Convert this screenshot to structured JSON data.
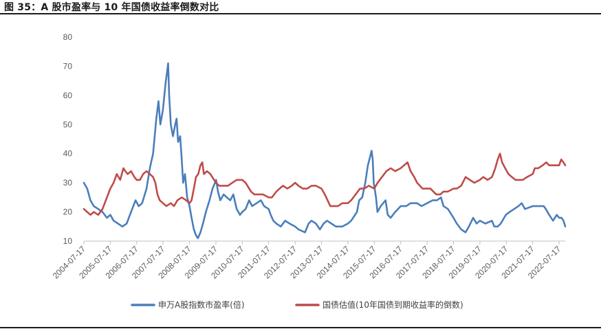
{
  "figure": {
    "title": "图 35：A 股市盈率与 10 年国债收益率倒数对比"
  },
  "colors": {
    "pe": "#4a7ebb",
    "bond": "#be4b48"
  },
  "chart_data": {
    "type": "line",
    "ylim": [
      10,
      80
    ],
    "yticks": [
      10,
      20,
      30,
      40,
      50,
      60,
      70,
      80
    ],
    "xlim": [
      "2004-07-17",
      "2022-10-10"
    ],
    "xticks": [
      "2004-07-17",
      "2005-07-17",
      "2006-07-17",
      "2007-07-17",
      "2008-07-17",
      "2009-07-17",
      "2010-07-17",
      "2011-07-17",
      "2012-07-17",
      "2013-07-17",
      "2014-07-17",
      "2015-07-17",
      "2016-07-17",
      "2017-07-17",
      "2018-07-17",
      "2019-07-17",
      "2020-07-17",
      "2021-07-17",
      "2022-07-17"
    ],
    "grid": false,
    "legend": "bottom",
    "series": [
      {
        "name": "申万A股指数市盈率(倍)",
        "color": "#4a7ebb",
        "points": [
          [
            "2004-07-17",
            30
          ],
          [
            "2004-09-01",
            28
          ],
          [
            "2004-10-15",
            24
          ],
          [
            "2004-12-01",
            22
          ],
          [
            "2005-02-01",
            21
          ],
          [
            "2005-04-01",
            20
          ],
          [
            "2005-06-01",
            18
          ],
          [
            "2005-07-17",
            19
          ],
          [
            "2005-09-01",
            17
          ],
          [
            "2005-11-01",
            16
          ],
          [
            "2006-01-01",
            15
          ],
          [
            "2006-03-01",
            16
          ],
          [
            "2006-05-01",
            20
          ],
          [
            "2006-07-01",
            24
          ],
          [
            "2006-08-15",
            22
          ],
          [
            "2006-10-01",
            23
          ],
          [
            "2006-12-01",
            28
          ],
          [
            "2007-01-15",
            35
          ],
          [
            "2007-03-01",
            40
          ],
          [
            "2007-04-15",
            52
          ],
          [
            "2007-05-15",
            58
          ],
          [
            "2007-06-10",
            50
          ],
          [
            "2007-07-15",
            55
          ],
          [
            "2007-08-20",
            64
          ],
          [
            "2007-09-10",
            68
          ],
          [
            "2007-09-25",
            71
          ],
          [
            "2007-10-10",
            60
          ],
          [
            "2007-11-01",
            50
          ],
          [
            "2007-12-01",
            46
          ],
          [
            "2008-01-01",
            50
          ],
          [
            "2008-01-20",
            52
          ],
          [
            "2008-02-10",
            44
          ],
          [
            "2008-03-10",
            46
          ],
          [
            "2008-04-01",
            38
          ],
          [
            "2008-04-20",
            30
          ],
          [
            "2008-05-15",
            33
          ],
          [
            "2008-06-15",
            25
          ],
          [
            "2008-07-17",
            22
          ],
          [
            "2008-08-15",
            18
          ],
          [
            "2008-09-15",
            14
          ],
          [
            "2008-10-15",
            12
          ],
          [
            "2008-11-10",
            11
          ],
          [
            "2008-12-15",
            13
          ],
          [
            "2009-01-20",
            16
          ],
          [
            "2009-03-01",
            20
          ],
          [
            "2009-04-20",
            24
          ],
          [
            "2009-06-01",
            28
          ],
          [
            "2009-07-20",
            31
          ],
          [
            "2009-08-15",
            27
          ],
          [
            "2009-09-15",
            24
          ],
          [
            "2009-11-01",
            26
          ],
          [
            "2009-12-15",
            25
          ],
          [
            "2010-02-01",
            24
          ],
          [
            "2010-03-15",
            26
          ],
          [
            "2010-05-01",
            21
          ],
          [
            "2010-06-15",
            19
          ],
          [
            "2010-07-17",
            20
          ],
          [
            "2010-09-01",
            21
          ],
          [
            "2010-10-20",
            24
          ],
          [
            "2010-12-01",
            22
          ],
          [
            "2011-02-01",
            23
          ],
          [
            "2011-04-01",
            24
          ],
          [
            "2011-05-15",
            22
          ],
          [
            "2011-07-17",
            21
          ],
          [
            "2011-08-15",
            19
          ],
          [
            "2011-09-20",
            17
          ],
          [
            "2011-11-01",
            16
          ],
          [
            "2012-01-01",
            15
          ],
          [
            "2012-03-01",
            17
          ],
          [
            "2012-05-01",
            16
          ],
          [
            "2012-07-17",
            15
          ],
          [
            "2012-09-01",
            14
          ],
          [
            "2012-12-01",
            13
          ],
          [
            "2013-01-20",
            16
          ],
          [
            "2013-03-01",
            17
          ],
          [
            "2013-05-01",
            16
          ],
          [
            "2013-06-25",
            14
          ],
          [
            "2013-08-15",
            16
          ],
          [
            "2013-10-01",
            17
          ],
          [
            "2013-12-01",
            16
          ],
          [
            "2014-02-01",
            15
          ],
          [
            "2014-05-01",
            15
          ],
          [
            "2014-07-17",
            16
          ],
          [
            "2014-09-01",
            17
          ],
          [
            "2014-11-20",
            20
          ],
          [
            "2014-12-20",
            24
          ],
          [
            "2015-02-01",
            25
          ],
          [
            "2015-03-15",
            30
          ],
          [
            "2015-04-20",
            36
          ],
          [
            "2015-06-10",
            41
          ],
          [
            "2015-06-25",
            38
          ],
          [
            "2015-07-10",
            30
          ],
          [
            "2015-08-10",
            25
          ],
          [
            "2015-08-30",
            20
          ],
          [
            "2015-10-15",
            22
          ],
          [
            "2015-12-20",
            24
          ],
          [
            "2016-01-20",
            19
          ],
          [
            "2016-03-01",
            18
          ],
          [
            "2016-05-01",
            20
          ],
          [
            "2016-07-17",
            22
          ],
          [
            "2016-10-01",
            22
          ],
          [
            "2016-12-01",
            23
          ],
          [
            "2017-03-01",
            23
          ],
          [
            "2017-05-01",
            22
          ],
          [
            "2017-07-17",
            23
          ],
          [
            "2017-10-01",
            24
          ],
          [
            "2017-12-01",
            24
          ],
          [
            "2018-01-25",
            25
          ],
          [
            "2018-03-01",
            22
          ],
          [
            "2018-05-01",
            21
          ],
          [
            "2018-07-17",
            18
          ],
          [
            "2018-09-01",
            16
          ],
          [
            "2018-11-01",
            14
          ],
          [
            "2018-12-31",
            13
          ],
          [
            "2019-02-15",
            15
          ],
          [
            "2019-04-15",
            18
          ],
          [
            "2019-06-01",
            16
          ],
          [
            "2019-07-17",
            17
          ],
          [
            "2019-10-01",
            16
          ],
          [
            "2019-12-31",
            17
          ],
          [
            "2020-02-01",
            15
          ],
          [
            "2020-03-20",
            15
          ],
          [
            "2020-05-01",
            16
          ],
          [
            "2020-07-10",
            19
          ],
          [
            "2020-09-01",
            20
          ],
          [
            "2020-11-01",
            21
          ],
          [
            "2021-01-01",
            22
          ],
          [
            "2021-02-15",
            23
          ],
          [
            "2021-04-01",
            21
          ],
          [
            "2021-07-17",
            22
          ],
          [
            "2021-09-15",
            22
          ],
          [
            "2021-12-15",
            22
          ],
          [
            "2022-01-15",
            21
          ],
          [
            "2022-03-01",
            19
          ],
          [
            "2022-04-25",
            17
          ],
          [
            "2022-06-15",
            19
          ],
          [
            "2022-07-17",
            18
          ],
          [
            "2022-08-20",
            18
          ],
          [
            "2022-09-15",
            17
          ],
          [
            "2022-10-10",
            15
          ]
        ]
      },
      {
        "name": "国债估值(10年国债到期收益率的倒数)",
        "color": "#be4b48",
        "points": [
          [
            "2004-07-17",
            21
          ],
          [
            "2004-09-01",
            20
          ],
          [
            "2004-10-15",
            19
          ],
          [
            "2004-12-01",
            20
          ],
          [
            "2005-02-01",
            19
          ],
          [
            "2005-04-01",
            21
          ],
          [
            "2005-06-01",
            25
          ],
          [
            "2005-07-17",
            28
          ],
          [
            "2005-09-01",
            30
          ],
          [
            "2005-10-15",
            33
          ],
          [
            "2005-12-01",
            31
          ],
          [
            "2006-01-15",
            35
          ],
          [
            "2006-02-10",
            34
          ],
          [
            "2006-03-15",
            33
          ],
          [
            "2006-05-01",
            34
          ],
          [
            "2006-06-15",
            32
          ],
          [
            "2006-07-17",
            31
          ],
          [
            "2006-09-01",
            31
          ],
          [
            "2006-10-15",
            33
          ],
          [
            "2006-12-01",
            34
          ],
          [
            "2007-01-15",
            33
          ],
          [
            "2007-03-01",
            32
          ],
          [
            "2007-04-01",
            30
          ],
          [
            "2007-05-01",
            26
          ],
          [
            "2007-06-01",
            24
          ],
          [
            "2007-07-17",
            23
          ],
          [
            "2007-09-01",
            22
          ],
          [
            "2007-11-01",
            23
          ],
          [
            "2007-12-15",
            22
          ],
          [
            "2008-02-01",
            24
          ],
          [
            "2008-04-01",
            25
          ],
          [
            "2008-06-01",
            24
          ],
          [
            "2008-07-17",
            23
          ],
          [
            "2008-08-15",
            24
          ],
          [
            "2008-09-15",
            28
          ],
          [
            "2008-10-15",
            32
          ],
          [
            "2008-11-15",
            33
          ],
          [
            "2008-12-15",
            36
          ],
          [
            "2009-01-10",
            37
          ],
          [
            "2009-02-01",
            33
          ],
          [
            "2009-03-15",
            34
          ],
          [
            "2009-05-01",
            33
          ],
          [
            "2009-07-17",
            30
          ],
          [
            "2009-09-01",
            29
          ],
          [
            "2009-11-01",
            29
          ],
          [
            "2010-01-01",
            29
          ],
          [
            "2010-03-01",
            30
          ],
          [
            "2010-05-01",
            31
          ],
          [
            "2010-07-17",
            31
          ],
          [
            "2010-09-01",
            30
          ],
          [
            "2010-11-15",
            27
          ],
          [
            "2011-01-01",
            26
          ],
          [
            "2011-03-01",
            26
          ],
          [
            "2011-05-01",
            26
          ],
          [
            "2011-07-17",
            25
          ],
          [
            "2011-09-01",
            25
          ],
          [
            "2011-11-01",
            27
          ],
          [
            "2011-12-15",
            28
          ],
          [
            "2012-02-01",
            29
          ],
          [
            "2012-04-01",
            28
          ],
          [
            "2012-06-01",
            29
          ],
          [
            "2012-07-17",
            30
          ],
          [
            "2012-09-01",
            29
          ],
          [
            "2012-11-01",
            28
          ],
          [
            "2013-01-01",
            28
          ],
          [
            "2013-03-01",
            29
          ],
          [
            "2013-05-01",
            29
          ],
          [
            "2013-07-17",
            28
          ],
          [
            "2013-09-01",
            26
          ],
          [
            "2013-11-15",
            22
          ],
          [
            "2014-01-01",
            22
          ],
          [
            "2014-03-01",
            22
          ],
          [
            "2014-05-01",
            23
          ],
          [
            "2014-07-17",
            23
          ],
          [
            "2014-09-01",
            24
          ],
          [
            "2014-11-01",
            26
          ],
          [
            "2015-01-01",
            28
          ],
          [
            "2015-03-01",
            28
          ],
          [
            "2015-05-01",
            29
          ],
          [
            "2015-07-17",
            28
          ],
          [
            "2015-09-01",
            30
          ],
          [
            "2015-11-01",
            32
          ],
          [
            "2016-01-01",
            34
          ],
          [
            "2016-03-01",
            35
          ],
          [
            "2016-05-01",
            34
          ],
          [
            "2016-07-17",
            35
          ],
          [
            "2016-09-01",
            36
          ],
          [
            "2016-10-20",
            37
          ],
          [
            "2016-12-01",
            34
          ],
          [
            "2017-01-20",
            32
          ],
          [
            "2017-03-01",
            30
          ],
          [
            "2017-05-15",
            28
          ],
          [
            "2017-07-17",
            28
          ],
          [
            "2017-09-01",
            28
          ],
          [
            "2017-11-20",
            26
          ],
          [
            "2018-01-15",
            26
          ],
          [
            "2018-03-01",
            27
          ],
          [
            "2018-05-01",
            27
          ],
          [
            "2018-07-17",
            28
          ],
          [
            "2018-09-01",
            28
          ],
          [
            "2018-11-01",
            29
          ],
          [
            "2019-01-01",
            32
          ],
          [
            "2019-03-01",
            31
          ],
          [
            "2019-05-01",
            30
          ],
          [
            "2019-07-17",
            31
          ],
          [
            "2019-09-01",
            32
          ],
          [
            "2019-11-01",
            31
          ],
          [
            "2020-01-01",
            32
          ],
          [
            "2020-02-15",
            35
          ],
          [
            "2020-03-20",
            38
          ],
          [
            "2020-04-20",
            40
          ],
          [
            "2020-05-20",
            37
          ],
          [
            "2020-07-01",
            35
          ],
          [
            "2020-08-15",
            33
          ],
          [
            "2020-10-01",
            32
          ],
          [
            "2020-11-20",
            31
          ],
          [
            "2021-01-01",
            31
          ],
          [
            "2021-03-01",
            31
          ],
          [
            "2021-05-01",
            32
          ],
          [
            "2021-07-17",
            33
          ],
          [
            "2021-08-15",
            35
          ],
          [
            "2021-10-01",
            35
          ],
          [
            "2021-12-01",
            36
          ],
          [
            "2022-01-20",
            37
          ],
          [
            "2022-03-01",
            36
          ],
          [
            "2022-04-15",
            36
          ],
          [
            "2022-06-01",
            36
          ],
          [
            "2022-07-17",
            36
          ],
          [
            "2022-08-15",
            38
          ],
          [
            "2022-09-15",
            37
          ],
          [
            "2022-10-10",
            36
          ]
        ]
      }
    ]
  }
}
